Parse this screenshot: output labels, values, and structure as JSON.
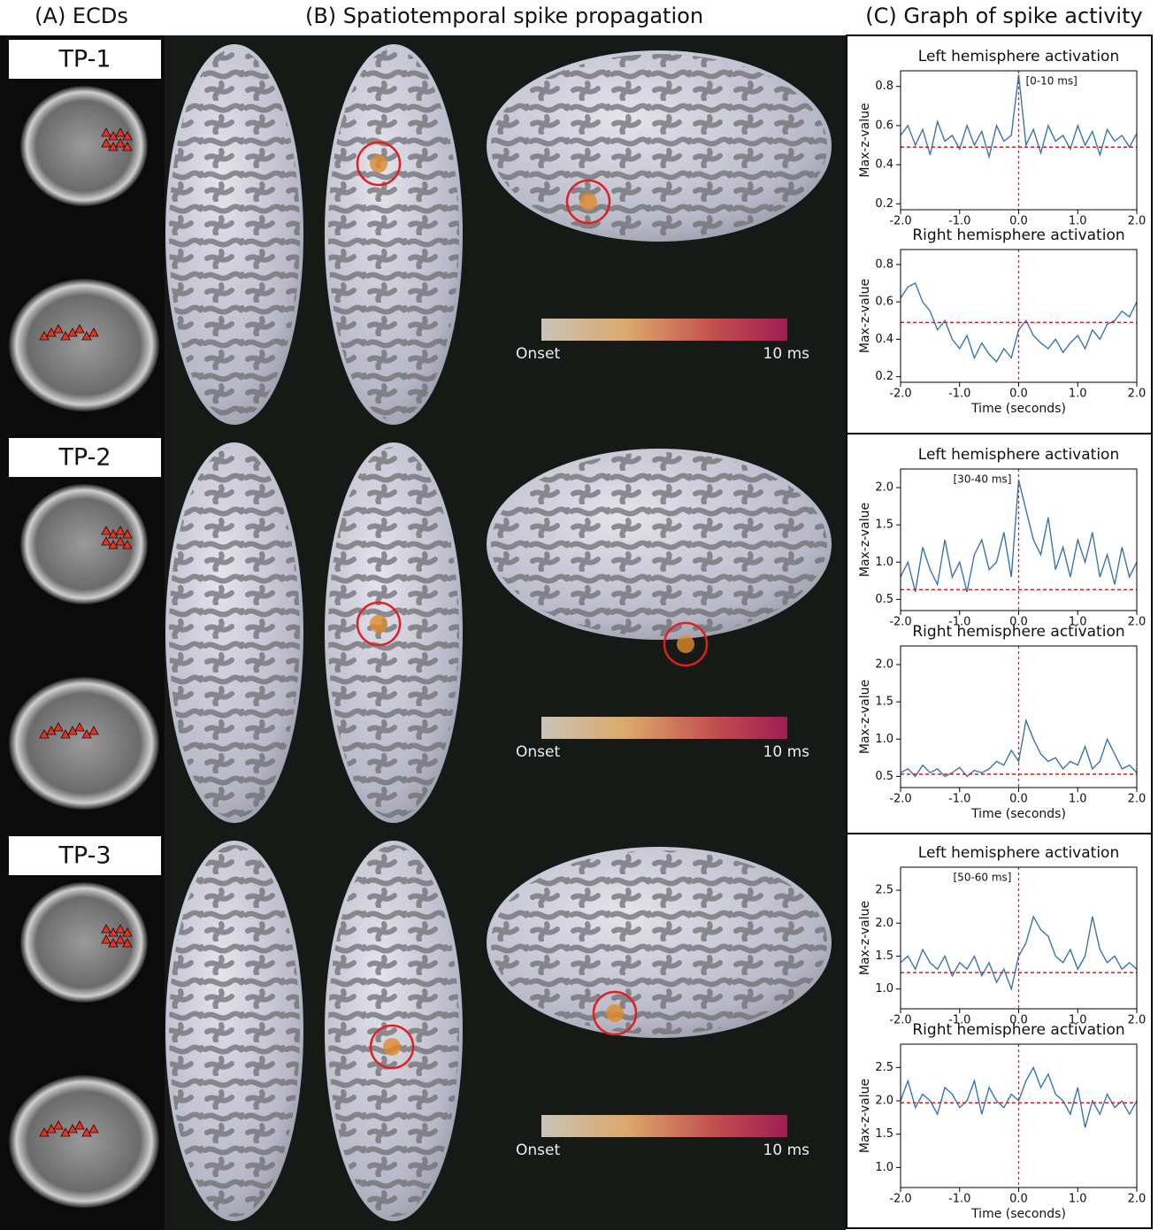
{
  "panel_titles": [
    "(A) ECDs",
    "(B) Spatiotemporal spike propagation",
    "(C) Graph of spike activity"
  ],
  "rows": [
    {
      "label": "TP-1",
      "colorbar_start": "Onset",
      "colorbar_end": "10 ms"
    },
    {
      "label": "TP-2",
      "colorbar_start": "Onset",
      "colorbar_end": "10 ms"
    },
    {
      "label": "TP-3",
      "colorbar_start": "Onset",
      "colorbar_end": "10 ms"
    }
  ],
  "chart_data": [
    {
      "type": "line",
      "title": "Left hemisphere activation",
      "ylabel": "Max-z-value",
      "annotation": "[0-10 ms]",
      "color": "#3a75b0",
      "threshold_color": "#cc2222",
      "x": [
        -2,
        -1.875,
        -1.75,
        -1.625,
        -1.5,
        -1.375,
        -1.25,
        -1.125,
        -1,
        -0.875,
        -0.75,
        -0.625,
        -0.5,
        -0.375,
        -0.25,
        -0.125,
        0,
        0.125,
        0.25,
        0.375,
        0.5,
        0.625,
        0.75,
        0.875,
        1,
        1.125,
        1.25,
        1.375,
        1.5,
        1.625,
        1.75,
        1.875,
        2
      ],
      "values": [
        0.55,
        0.6,
        0.5,
        0.58,
        0.45,
        0.62,
        0.52,
        0.55,
        0.48,
        0.6,
        0.5,
        0.57,
        0.44,
        0.6,
        0.52,
        0.55,
        0.86,
        0.5,
        0.58,
        0.46,
        0.6,
        0.52,
        0.55,
        0.48,
        0.6,
        0.5,
        0.57,
        0.45,
        0.58,
        0.52,
        0.55,
        0.49,
        0.56
      ],
      "threshold": 0.49,
      "event_x": 0,
      "xlim": [
        -2,
        2
      ],
      "xticks": [
        {
          "value": -2,
          "label": "-2.0"
        },
        {
          "value": -1,
          "label": "-1.0"
        },
        {
          "value": 0,
          "label": "0.0"
        },
        {
          "value": 1,
          "label": "1.0"
        },
        {
          "value": 2,
          "label": "2.0"
        }
      ],
      "ylim": [
        0.17,
        0.88
      ],
      "yticks": [
        0.2,
        0.4,
        0.6,
        0.8
      ]
    },
    {
      "type": "line",
      "title": "Right hemisphere activation",
      "ylabel": "Max-z-value",
      "xlabel": "Time (seconds)",
      "color": "#3a75b0",
      "threshold_color": "#cc2222",
      "x": [
        -2,
        -1.875,
        -1.75,
        -1.625,
        -1.5,
        -1.375,
        -1.25,
        -1.125,
        -1,
        -0.875,
        -0.75,
        -0.625,
        -0.5,
        -0.375,
        -0.25,
        -0.125,
        0,
        0.125,
        0.25,
        0.375,
        0.5,
        0.625,
        0.75,
        0.875,
        1,
        1.125,
        1.25,
        1.375,
        1.5,
        1.625,
        1.75,
        1.875,
        2
      ],
      "values": [
        0.62,
        0.68,
        0.7,
        0.6,
        0.55,
        0.45,
        0.5,
        0.4,
        0.35,
        0.42,
        0.3,
        0.38,
        0.32,
        0.28,
        0.35,
        0.3,
        0.45,
        0.5,
        0.42,
        0.38,
        0.35,
        0.4,
        0.33,
        0.38,
        0.42,
        0.35,
        0.45,
        0.4,
        0.48,
        0.5,
        0.55,
        0.52,
        0.6
      ],
      "threshold": 0.49,
      "event_x": 0,
      "xlim": [
        -2,
        2
      ],
      "xticks": [
        {
          "value": -2,
          "label": "-2.0"
        },
        {
          "value": -1,
          "label": "-1.0"
        },
        {
          "value": 0,
          "label": "0.0"
        },
        {
          "value": 1,
          "label": "1.0"
        },
        {
          "value": 2,
          "label": "2.0"
        }
      ],
      "ylim": [
        0.17,
        0.88
      ],
      "yticks": [
        0.2,
        0.4,
        0.6,
        0.8
      ]
    },
    {
      "type": "line",
      "title": "Left hemisphere activation",
      "ylabel": "Max-z-value",
      "annotation": "[30-40 ms]",
      "color": "#3a75b0",
      "threshold_color": "#cc2222",
      "x": [
        -2,
        -1.875,
        -1.75,
        -1.625,
        -1.5,
        -1.375,
        -1.25,
        -1.125,
        -1,
        -0.875,
        -0.75,
        -0.625,
        -0.5,
        -0.375,
        -0.25,
        -0.125,
        0,
        0.125,
        0.25,
        0.375,
        0.5,
        0.625,
        0.75,
        0.875,
        1,
        1.125,
        1.25,
        1.375,
        1.5,
        1.625,
        1.75,
        1.875,
        2
      ],
      "values": [
        0.8,
        1.0,
        0.6,
        1.2,
        0.9,
        0.7,
        1.3,
        0.8,
        1.0,
        0.6,
        1.1,
        1.3,
        0.9,
        1.0,
        1.4,
        0.8,
        2.1,
        1.7,
        1.3,
        1.1,
        1.6,
        0.9,
        1.2,
        0.8,
        1.3,
        1.0,
        1.4,
        0.8,
        1.1,
        0.7,
        1.2,
        0.8,
        1.0
      ],
      "threshold": 0.63,
      "event_x": 0,
      "xlim": [
        -2,
        2
      ],
      "xticks": [
        {
          "value": -2,
          "label": "-2.0"
        },
        {
          "value": -1,
          "label": "-1.0"
        },
        {
          "value": 0,
          "label": "0.0"
        },
        {
          "value": 1,
          "label": "1.0"
        },
        {
          "value": 2,
          "label": "2.0"
        }
      ],
      "ylim": [
        0.35,
        2.25
      ],
      "yticks": [
        0.5,
        {
          "value": 1,
          "label": "1.0"
        },
        1.5,
        {
          "value": 2,
          "label": "2.0"
        }
      ]
    },
    {
      "type": "line",
      "title": "Right hemisphere activation",
      "ylabel": "Max-z-value",
      "xlabel": "Time (seconds)",
      "color": "#3a75b0",
      "threshold_color": "#cc2222",
      "x": [
        -2,
        -1.875,
        -1.75,
        -1.625,
        -1.5,
        -1.375,
        -1.25,
        -1.125,
        -1,
        -0.875,
        -0.75,
        -0.625,
        -0.5,
        -0.375,
        -0.25,
        -0.125,
        0,
        0.125,
        0.25,
        0.375,
        0.5,
        0.625,
        0.75,
        0.875,
        1,
        1.125,
        1.25,
        1.375,
        1.5,
        1.625,
        1.75,
        1.875,
        2
      ],
      "values": [
        0.55,
        0.6,
        0.5,
        0.65,
        0.55,
        0.6,
        0.5,
        0.55,
        0.62,
        0.5,
        0.58,
        0.55,
        0.6,
        0.7,
        0.65,
        0.85,
        0.7,
        1.25,
        1.0,
        0.8,
        0.7,
        0.75,
        0.6,
        0.7,
        0.65,
        0.9,
        0.6,
        0.7,
        1.0,
        0.8,
        0.6,
        0.65,
        0.55
      ],
      "threshold": 0.53,
      "event_x": 0,
      "xlim": [
        -2,
        2
      ],
      "xticks": [
        {
          "value": -2,
          "label": "-2.0"
        },
        {
          "value": -1,
          "label": "-1.0"
        },
        {
          "value": 0,
          "label": "0.0"
        },
        {
          "value": 1,
          "label": "1.0"
        },
        {
          "value": 2,
          "label": "2.0"
        }
      ],
      "ylim": [
        0.35,
        2.25
      ],
      "yticks": [
        0.5,
        {
          "value": 1,
          "label": "1.0"
        },
        1.5,
        {
          "value": 2,
          "label": "2.0"
        }
      ]
    },
    {
      "type": "line",
      "title": "Left hemisphere activation",
      "ylabel": "Max-z-value",
      "annotation": "[50-60 ms]",
      "color": "#3a75b0",
      "threshold_color": "#cc2222",
      "x": [
        -2,
        -1.875,
        -1.75,
        -1.625,
        -1.5,
        -1.375,
        -1.25,
        -1.125,
        -1,
        -0.875,
        -0.75,
        -0.625,
        -0.5,
        -0.375,
        -0.25,
        -0.125,
        0,
        0.125,
        0.25,
        0.375,
        0.5,
        0.625,
        0.75,
        0.875,
        1,
        1.125,
        1.25,
        1.375,
        1.5,
        1.625,
        1.75,
        1.875,
        2
      ],
      "values": [
        1.4,
        1.5,
        1.3,
        1.6,
        1.4,
        1.3,
        1.5,
        1.2,
        1.4,
        1.3,
        1.5,
        1.2,
        1.4,
        1.1,
        1.3,
        1.0,
        1.5,
        1.7,
        2.1,
        1.9,
        1.8,
        1.5,
        1.4,
        1.6,
        1.3,
        1.5,
        2.1,
        1.6,
        1.4,
        1.5,
        1.3,
        1.4,
        1.3
      ],
      "threshold": 1.25,
      "event_x": 0,
      "xlim": [
        -2,
        2
      ],
      "xticks": [
        {
          "value": -2,
          "label": "-2.0"
        },
        {
          "value": -1,
          "label": "-1.0"
        },
        {
          "value": 0,
          "label": "0.0"
        },
        {
          "value": 1,
          "label": "1.0"
        },
        {
          "value": 2,
          "label": "2.0"
        }
      ],
      "ylim": [
        0.7,
        2.85
      ],
      "yticks": [
        {
          "value": 1,
          "label": "1.0"
        },
        1.5,
        {
          "value": 2,
          "label": "2.0"
        },
        2.5
      ]
    },
    {
      "type": "line",
      "title": "Right hemisphere activation",
      "ylabel": "Max-z-value",
      "xlabel": "Time (seconds)",
      "color": "#3a75b0",
      "threshold_color": "#cc2222",
      "x": [
        -2,
        -1.875,
        -1.75,
        -1.625,
        -1.5,
        -1.375,
        -1.25,
        -1.125,
        -1,
        -0.875,
        -0.75,
        -0.625,
        -0.5,
        -0.375,
        -0.25,
        -0.125,
        0,
        0.125,
        0.25,
        0.375,
        0.5,
        0.625,
        0.75,
        0.875,
        1,
        1.125,
        1.25,
        1.375,
        1.5,
        1.625,
        1.75,
        1.875,
        2
      ],
      "values": [
        2.0,
        2.3,
        1.9,
        2.1,
        2.0,
        1.8,
        2.2,
        2.1,
        1.9,
        2.0,
        2.3,
        1.8,
        2.2,
        2.0,
        1.9,
        2.1,
        2.0,
        2.3,
        2.5,
        2.2,
        2.4,
        2.1,
        2.0,
        1.8,
        2.2,
        1.6,
        2.0,
        1.8,
        2.1,
        1.9,
        2.0,
        1.8,
        2.0
      ],
      "threshold": 1.97,
      "event_x": 0,
      "xlim": [
        -2,
        2
      ],
      "xticks": [
        {
          "value": -2,
          "label": "-2.0"
        },
        {
          "value": -1,
          "label": "-1.0"
        },
        {
          "value": 0,
          "label": "0.0"
        },
        {
          "value": 1,
          "label": "1.0"
        },
        {
          "value": 2,
          "label": "2.0"
        }
      ],
      "ylim": [
        0.7,
        2.85
      ],
      "yticks": [
        {
          "value": 1,
          "label": "1.0"
        },
        1.5,
        {
          "value": 2,
          "label": "2.0"
        },
        2.5
      ]
    }
  ]
}
